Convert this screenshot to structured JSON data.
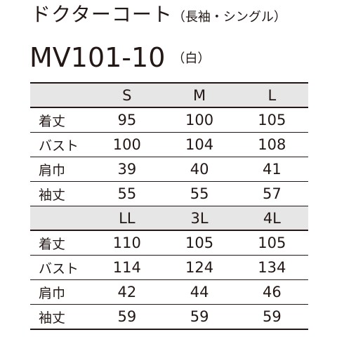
{
  "product": {
    "title": "ドクターコート",
    "subtitle": "（長袖・シングル）",
    "model": "MV101-10",
    "color": "（白）"
  },
  "tables": [
    {
      "sizes": [
        "S",
        "M",
        "L"
      ],
      "rows": [
        {
          "label": "着丈",
          "values": [
            "95",
            "100",
            "105"
          ]
        },
        {
          "label": "バスト",
          "values": [
            "100",
            "104",
            "108"
          ]
        },
        {
          "label": "肩巾",
          "values": [
            "39",
            "40",
            "41"
          ]
        },
        {
          "label": "袖丈",
          "values": [
            "55",
            "55",
            "57"
          ]
        }
      ]
    },
    {
      "sizes": [
        "LL",
        "3L",
        "4L"
      ],
      "rows": [
        {
          "label": "着丈",
          "values": [
            "110",
            "105",
            "105"
          ]
        },
        {
          "label": "バスト",
          "values": [
            "114",
            "124",
            "134"
          ]
        },
        {
          "label": "肩巾",
          "values": [
            "42",
            "44",
            "46"
          ]
        },
        {
          "label": "袖丈",
          "values": [
            "59",
            "59",
            "59"
          ]
        }
      ]
    }
  ]
}
